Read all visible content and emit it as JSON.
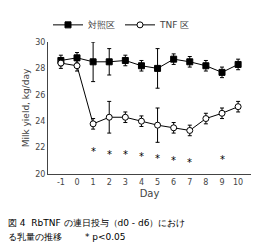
{
  "chart_data": {
    "type": "line",
    "x": [
      -1,
      0,
      1,
      2,
      3,
      4,
      5,
      6,
      7,
      8,
      9,
      10
    ],
    "series": [
      {
        "name": "対照区",
        "color": "#000000",
        "marker": "square",
        "values": [
          28.6,
          28.8,
          28.5,
          28.5,
          28.6,
          28.2,
          28.0,
          28.7,
          28.5,
          28.2,
          27.7,
          28.3
        ],
        "error": [
          0.4,
          0.4,
          1.5,
          1.0,
          0.4,
          0.4,
          1.5,
          0.4,
          0.4,
          0.4,
          0.4,
          0.4
        ]
      },
      {
        "name": "TNF 区",
        "color": "#000000",
        "marker": "open circle",
        "values": [
          28.4,
          28.2,
          23.8,
          24.3,
          24.3,
          24.0,
          23.7,
          23.5,
          23.3,
          24.2,
          24.6,
          25.1
        ],
        "error": [
          0.4,
          0.4,
          0.4,
          1.2,
          0.4,
          0.4,
          1.3,
          0.4,
          0.4,
          0.4,
          0.4,
          0.4
        ]
      }
    ],
    "annotations": [
      {
        "x": 1,
        "y": 21.7,
        "text": "*"
      },
      {
        "x": 2,
        "y": 21.5,
        "text": "*"
      },
      {
        "x": 3,
        "y": 21.5,
        "text": "*"
      },
      {
        "x": 4,
        "y": 21.3,
        "text": "*"
      },
      {
        "x": 5,
        "y": 21.2,
        "text": "*"
      },
      {
        "x": 6,
        "y": 21.0,
        "text": "*"
      },
      {
        "x": 7,
        "y": 20.9,
        "text": "*"
      },
      {
        "x": 9,
        "y": 21.1,
        "text": "*"
      }
    ],
    "caption": [
      "図 4  RbTNF の連日投与（d0 - d6）におけ",
      "る乳量の推移        * p<0.05"
    ],
    "xlabel": "Day",
    "ylabel": "Milk yield, kg/day",
    "xlim": [
      -1.8,
      10.8
    ],
    "xticks": [
      -1,
      0,
      1,
      2,
      3,
      4,
      5,
      6,
      7,
      8,
      9,
      10
    ],
    "ylim": [
      20,
      30
    ],
    "yticks": [
      20,
      22,
      24,
      26,
      28,
      30
    ],
    "grid": false,
    "legend": "top"
  }
}
